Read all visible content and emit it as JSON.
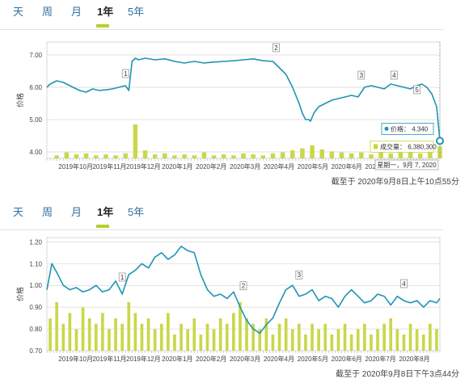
{
  "charts": [
    {
      "tabs": [
        "天",
        "周",
        "月",
        "1年",
        "5年"
      ],
      "active_tab": 3,
      "timestamp": "截至于 2020年9月8日上午10点55分",
      "tooltip": {
        "price_label": "价格：",
        "price_value": "4.340",
        "volume_label": "成交量：",
        "volume_value": "6,380,300",
        "date_text": "星期一，9月 7, 2020"
      },
      "colors": {
        "line": "#1f94b3",
        "bar": "#c5d63f",
        "tab_active": "#b8cf2e",
        "grid": "#d8d8d8"
      }
    },
    {
      "tabs": [
        "天",
        "周",
        "月",
        "1年",
        "5年"
      ],
      "active_tab": 3,
      "timestamp": "截至于 2020年9月8日下午3点44分",
      "colors": {
        "line": "#1f94b3",
        "bar": "#c5d63f",
        "tab_active": "#b8cf2e",
        "grid": "#d8d8d8"
      }
    }
  ],
  "chart_data": [
    {
      "type": "line",
      "ylabel": "价格",
      "ylim": [
        3.8,
        7.4
      ],
      "yticks": [
        "4.00",
        "5.00",
        "6.00",
        "7.00"
      ],
      "ytick_values": [
        4,
        5,
        6,
        7
      ],
      "x_categories": [
        "2019年10月",
        "2019年11月",
        "2019年12月",
        "2020年1月",
        "2020年2月",
        "2020年3月",
        "2020年4月",
        "2020年5月",
        "2020年6月",
        "2020年7月",
        "2020年8月"
      ],
      "x_domain": [
        0,
        12
      ],
      "grid": true,
      "series": [
        {
          "x": [
            0,
            0.1,
            0.3,
            0.5,
            0.7,
            0.9,
            1.0,
            1.2,
            1.4,
            1.6,
            1.8,
            2.0,
            2.2,
            2.4,
            2.5,
            2.6,
            2.7,
            2.8,
            3.0,
            3.3,
            3.6,
            3.9,
            4.2,
            4.5,
            4.8,
            5.1,
            5.4,
            5.7,
            6.0,
            6.3,
            6.6,
            6.9,
            7.1,
            7.3,
            7.5,
            7.7,
            7.8,
            7.9,
            8.0,
            8.05,
            8.15,
            8.3,
            8.5,
            8.7,
            8.9,
            9.1,
            9.3,
            9.5,
            9.7,
            9.9,
            10.1,
            10.3,
            10.5,
            10.7,
            10.9,
            11.1,
            11.3,
            11.45,
            11.6,
            11.75,
            11.9,
            12.0
          ],
          "y": [
            6.0,
            6.1,
            6.2,
            6.15,
            6.05,
            5.95,
            5.9,
            5.85,
            5.95,
            5.9,
            5.92,
            5.95,
            6.0,
            6.05,
            5.9,
            6.8,
            6.9,
            6.85,
            6.9,
            6.85,
            6.88,
            6.8,
            6.75,
            6.8,
            6.75,
            6.78,
            6.8,
            6.82,
            6.85,
            6.88,
            6.82,
            6.8,
            6.6,
            6.4,
            6.0,
            5.5,
            5.2,
            5.0,
            5.0,
            4.95,
            5.2,
            5.4,
            5.5,
            5.6,
            5.65,
            5.7,
            5.75,
            5.7,
            6.0,
            6.05,
            6.0,
            5.95,
            6.1,
            6.05,
            6.0,
            5.95,
            6.05,
            6.1,
            6.0,
            5.8,
            5.4,
            4.34
          ]
        }
      ],
      "volume_x": [
        0.3,
        0.6,
        0.9,
        1.2,
        1.5,
        1.8,
        2.1,
        2.4,
        2.7,
        3.0,
        3.3,
        3.6,
        3.9,
        4.2,
        4.5,
        4.8,
        5.1,
        5.4,
        5.7,
        6.0,
        6.3,
        6.6,
        6.9,
        7.2,
        7.5,
        7.8,
        8.1,
        8.4,
        8.7,
        9.0,
        9.3,
        9.6,
        9.9,
        10.2,
        10.5,
        10.8,
        11.1,
        11.4,
        11.7,
        12.0
      ],
      "volume_values": [
        0.3,
        0.6,
        0.4,
        0.5,
        0.3,
        0.4,
        0.3,
        0.5,
        3.4,
        0.8,
        0.4,
        0.5,
        0.3,
        0.4,
        0.3,
        0.6,
        0.3,
        0.4,
        0.3,
        0.5,
        0.4,
        0.3,
        0.5,
        0.6,
        0.8,
        1.0,
        1.3,
        0.9,
        0.7,
        0.6,
        0.5,
        0.6,
        0.4,
        0.7,
        0.5,
        0.6,
        0.8,
        0.5,
        0.7,
        1.2
      ],
      "events": [
        {
          "label": "1",
          "x": 2.4,
          "y": 6.1
        },
        {
          "label": "2",
          "x": 7.0,
          "y": 6.9
        },
        {
          "label": "3",
          "x": 9.6,
          "y": 6.05
        },
        {
          "label": "4",
          "x": 10.6,
          "y": 6.05
        },
        {
          "label": "5",
          "x": 11.3,
          "y": 5.6
        }
      ]
    },
    {
      "type": "line",
      "ylabel": "价格",
      "ylim": [
        0.7,
        1.22
      ],
      "yticks": [
        "0.70",
        "0.80",
        "0.90",
        "1.00",
        "1.10",
        "1.20"
      ],
      "ytick_values": [
        0.7,
        0.8,
        0.9,
        1.0,
        1.1,
        1.2
      ],
      "x_categories": [
        "2019年10月",
        "2019年11月",
        "2019年12月",
        "2020年1月",
        "2020年2月",
        "2020年3月",
        "2020年4月",
        "2020年5月",
        "2020年6月",
        "2020年7月",
        "2020年8月"
      ],
      "x_domain": [
        0,
        12
      ],
      "grid": true,
      "series": [
        {
          "x": [
            0,
            0.15,
            0.3,
            0.5,
            0.7,
            0.9,
            1.1,
            1.3,
            1.5,
            1.7,
            1.9,
            2.1,
            2.3,
            2.5,
            2.7,
            2.9,
            3.1,
            3.3,
            3.5,
            3.7,
            3.9,
            4.1,
            4.3,
            4.5,
            4.7,
            4.9,
            5.1,
            5.3,
            5.5,
            5.7,
            5.9,
            6.1,
            6.3,
            6.5,
            6.7,
            6.9,
            7.1,
            7.3,
            7.5,
            7.7,
            7.9,
            8.1,
            8.3,
            8.5,
            8.7,
            8.9,
            9.1,
            9.3,
            9.5,
            9.7,
            9.9,
            10.1,
            10.3,
            10.5,
            10.7,
            10.9,
            11.1,
            11.3,
            11.5,
            11.7,
            11.9,
            12.0
          ],
          "y": [
            0.98,
            1.1,
            1.06,
            1.0,
            0.98,
            0.99,
            0.97,
            0.98,
            1.0,
            0.97,
            0.98,
            1.02,
            0.96,
            1.05,
            1.07,
            1.1,
            1.08,
            1.13,
            1.15,
            1.12,
            1.14,
            1.18,
            1.16,
            1.15,
            1.05,
            0.98,
            0.95,
            0.96,
            0.94,
            0.97,
            0.9,
            0.84,
            0.8,
            0.78,
            0.82,
            0.85,
            0.92,
            0.98,
            1.0,
            0.95,
            0.96,
            0.98,
            0.93,
            0.95,
            0.94,
            0.9,
            0.95,
            0.98,
            0.95,
            0.92,
            0.93,
            0.96,
            0.95,
            0.91,
            0.95,
            0.93,
            0.92,
            0.93,
            0.9,
            0.93,
            0.92,
            0.94
          ]
        }
      ],
      "volume_x": [
        0.1,
        0.3,
        0.5,
        0.7,
        0.9,
        1.1,
        1.3,
        1.5,
        1.7,
        1.9,
        2.1,
        2.3,
        2.5,
        2.7,
        2.9,
        3.1,
        3.3,
        3.5,
        3.7,
        3.9,
        4.1,
        4.3,
        4.5,
        4.7,
        4.9,
        5.1,
        5.3,
        5.5,
        5.7,
        5.9,
        6.1,
        6.3,
        6.5,
        6.7,
        6.9,
        7.1,
        7.3,
        7.5,
        7.7,
        7.9,
        8.1,
        8.3,
        8.5,
        8.7,
        8.9,
        9.1,
        9.3,
        9.5,
        9.7,
        9.9,
        10.1,
        10.3,
        10.5,
        10.7,
        10.9,
        11.1,
        11.3,
        11.5,
        11.7,
        11.9
      ],
      "volume_values": [
        0.6,
        0.9,
        0.5,
        0.7,
        0.4,
        0.8,
        0.6,
        0.5,
        0.7,
        0.4,
        0.6,
        0.5,
        0.9,
        0.7,
        0.5,
        0.6,
        0.4,
        0.5,
        0.7,
        0.3,
        0.5,
        0.4,
        0.6,
        0.3,
        0.5,
        0.4,
        0.6,
        0.5,
        0.7,
        0.9,
        0.6,
        0.5,
        0.4,
        0.6,
        0.3,
        0.5,
        0.6,
        0.4,
        0.5,
        0.3,
        0.5,
        0.4,
        0.5,
        0.3,
        0.4,
        0.5,
        0.3,
        0.4,
        0.5,
        0.3,
        0.4,
        0.5,
        0.6,
        0.4,
        0.3,
        0.5,
        0.4,
        0.3,
        0.5,
        0.4
      ],
      "events": [
        {
          "label": "1",
          "x": 2.3,
          "y": 0.99
        },
        {
          "label": "2",
          "x": 6.0,
          "y": 0.95
        },
        {
          "label": "3",
          "x": 7.7,
          "y": 1.0
        },
        {
          "label": "4",
          "x": 10.9,
          "y": 0.96
        }
      ]
    }
  ]
}
